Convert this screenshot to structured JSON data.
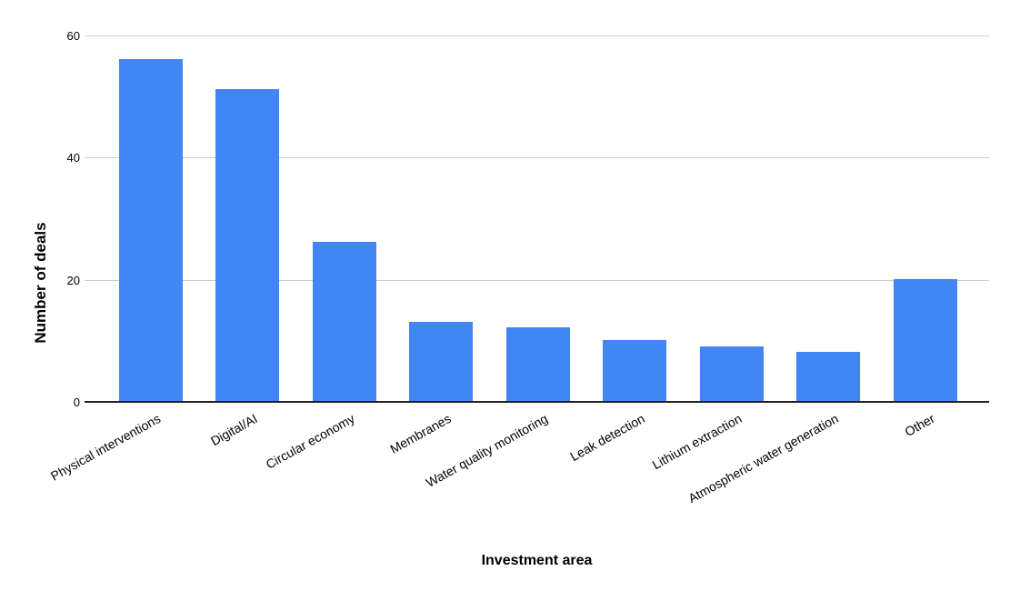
{
  "chart_data": {
    "type": "bar",
    "title": "",
    "categories": [
      "Physical interventions",
      "Digital/AI",
      "Circular economy",
      "Membranes",
      "Water quality monitoring",
      "Leak detection",
      "Lithium extraction",
      "Atmospheric water generation",
      "Other"
    ],
    "values": [
      56,
      51,
      26,
      13,
      12,
      10,
      9,
      8,
      20
    ],
    "xlabel": "Investment area",
    "ylabel": "Number of deals",
    "ylim": [
      0,
      60
    ],
    "yticks": [
      0,
      20,
      40,
      60
    ],
    "grid": true,
    "legend_position": "none",
    "colors": {
      "bar": "#4285f4",
      "gridline": "#cccccc",
      "axis_line": "#212121",
      "text": "#000000",
      "background": "#ffffff"
    }
  }
}
